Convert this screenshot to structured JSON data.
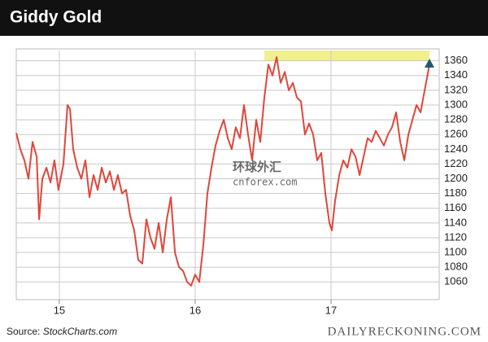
{
  "chart_data": {
    "type": "line",
    "title": "Giddy Gold",
    "source_prefix": "Source:",
    "source": "StockCharts.com",
    "credit": "DAILYRECKONING.COM",
    "watermark": "环球外汇",
    "watermark_url": "cnforex.com",
    "color": "#e0463a",
    "grid": true,
    "xlim": [
      2014.683,
      2017.796
    ],
    "xticks": [
      {
        "value": 2015,
        "label": "15"
      },
      {
        "value": 2016,
        "label": "16"
      },
      {
        "value": 2017,
        "label": "17"
      }
    ],
    "ylim": [
      1036,
      1374
    ],
    "yticks": [
      1060,
      1080,
      1100,
      1120,
      1140,
      1160,
      1180,
      1200,
      1220,
      1240,
      1260,
      1280,
      1300,
      1320,
      1340,
      1360
    ],
    "x": [
      2014.683,
      2014.713,
      2014.743,
      2014.773,
      2014.803,
      2014.833,
      2014.851,
      2014.875,
      2014.905,
      2014.935,
      2014.964,
      2014.994,
      2015.03,
      2015.06,
      2015.078,
      2015.102,
      2015.132,
      2015.162,
      2015.192,
      2015.222,
      2015.252,
      2015.282,
      2015.312,
      2015.342,
      2015.372,
      2015.402,
      2015.431,
      2015.461,
      2015.491,
      2015.521,
      2015.551,
      2015.581,
      2015.611,
      2015.641,
      2015.671,
      2015.701,
      2015.731,
      2015.761,
      2015.791,
      2015.821,
      2015.851,
      2015.881,
      2015.911,
      2015.941,
      2015.97,
      2016.0,
      2016.03,
      2016.06,
      2016.09,
      2016.12,
      2016.15,
      2016.18,
      2016.21,
      2016.24,
      2016.269,
      2016.299,
      2016.329,
      2016.359,
      2016.389,
      2016.419,
      2016.449,
      2016.479,
      2016.509,
      2016.539,
      2016.569,
      2016.599,
      2016.629,
      2016.659,
      2016.689,
      2016.719,
      2016.749,
      2016.778,
      2016.808,
      2016.838,
      2016.868,
      2016.898,
      2016.928,
      2016.958,
      2016.988,
      2017.006,
      2017.03,
      2017.06,
      2017.09,
      2017.12,
      2017.15,
      2017.18,
      2017.21,
      2017.24,
      2017.269,
      2017.299,
      2017.329,
      2017.359,
      2017.389,
      2017.419,
      2017.449,
      2017.479,
      2017.509,
      2017.539,
      2017.569,
      2017.599,
      2017.629,
      2017.659,
      2017.689,
      2017.725
    ],
    "values": [
      1262,
      1240,
      1225,
      1200,
      1250,
      1230,
      1145,
      1200,
      1215,
      1195,
      1225,
      1185,
      1220,
      1300,
      1295,
      1240,
      1215,
      1200,
      1225,
      1175,
      1205,
      1185,
      1215,
      1195,
      1210,
      1185,
      1205,
      1180,
      1185,
      1150,
      1130,
      1090,
      1085,
      1145,
      1120,
      1105,
      1140,
      1100,
      1145,
      1175,
      1100,
      1080,
      1075,
      1060,
      1055,
      1070,
      1060,
      1110,
      1180,
      1215,
      1245,
      1265,
      1280,
      1255,
      1240,
      1270,
      1255,
      1300,
      1260,
      1225,
      1280,
      1250,
      1310,
      1355,
      1340,
      1365,
      1330,
      1345,
      1320,
      1330,
      1310,
      1305,
      1260,
      1275,
      1260,
      1225,
      1235,
      1180,
      1140,
      1130,
      1170,
      1205,
      1225,
      1215,
      1240,
      1230,
      1205,
      1230,
      1255,
      1250,
      1265,
      1255,
      1245,
      1260,
      1270,
      1290,
      1250,
      1225,
      1260,
      1280,
      1300,
      1290,
      1320,
      1355
    ]
  }
}
